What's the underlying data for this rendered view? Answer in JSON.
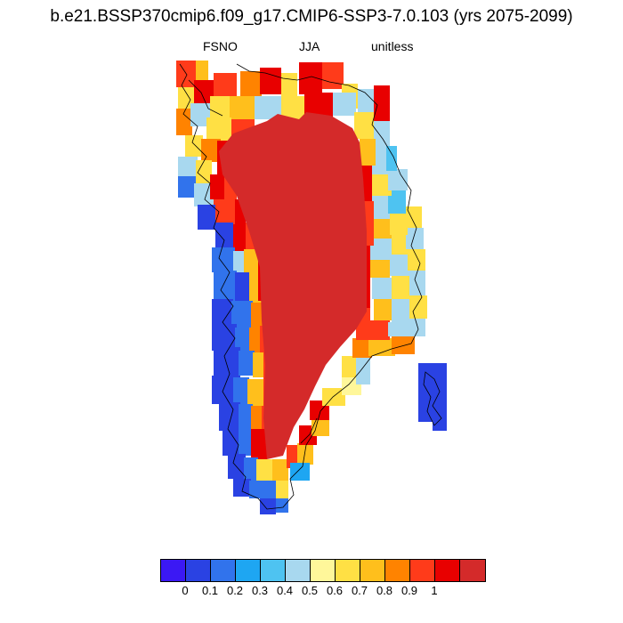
{
  "plot": {
    "title": "b.e21.BSSP370cmip6.f09_g17.CMIP6-SSP3-7.0.103 (yrs 2075-2099)",
    "left_label": "FSNO",
    "center_label": "JJA",
    "right_label": "unitless"
  },
  "colorbar": {
    "colors": [
      "#3b18f4",
      "#2a42e3",
      "#3173ec",
      "#1ea6f2",
      "#4ec3f1",
      "#a8d8ef",
      "#fff79a",
      "#ffe044",
      "#ffbf1c",
      "#ff8300",
      "#ff3b1a",
      "#e80000",
      "#d42a2a"
    ],
    "labels": [
      "0",
      "0.1",
      "0.2",
      "0.3",
      "0.4",
      "0.5",
      "0.6",
      "0.7",
      "0.8",
      "0.9",
      "1"
    ]
  },
  "chart_data": {
    "type": "heatmap",
    "title": "b.e21.BSSP370cmip6.f09_g17.CMIP6-SSP3-7.0.103 (yrs 2075-2099)",
    "variable": "FSNO",
    "season": "JJA",
    "units": "unitless",
    "region": "Greenland",
    "scale_min": 0,
    "scale_max": 1,
    "levels": [
      0,
      0.1,
      0.2,
      0.3,
      0.4,
      0.5,
      0.6,
      0.7,
      0.8,
      0.9,
      1
    ]
  }
}
